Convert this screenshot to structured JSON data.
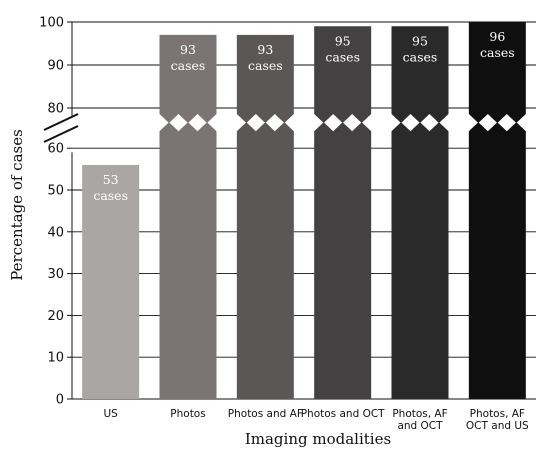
{
  "chart_data": {
    "type": "bar",
    "xlabel": "Imaging modalities",
    "ylabel": "Percentage of cases",
    "ylim": [
      0,
      100
    ],
    "axis_break": [
      60,
      80
    ],
    "yticks": [
      0,
      10,
      20,
      30,
      40,
      50,
      60,
      80,
      90,
      100
    ],
    "grid": true,
    "categories": [
      [
        "US"
      ],
      [
        "Photos"
      ],
      [
        "Photos and AF"
      ],
      [
        "Photos and OCT"
      ],
      [
        "Photos, AF",
        "and OCT"
      ],
      [
        "Photos, AF",
        "OCT and US"
      ]
    ],
    "values": [
      56,
      97,
      97,
      99,
      99,
      100
    ],
    "labels": [
      [
        "53",
        "cases"
      ],
      [
        "93",
        "cases"
      ],
      [
        "93",
        "cases"
      ],
      [
        "95",
        "cases"
      ],
      [
        "95",
        "cases"
      ],
      [
        "96",
        "cases"
      ]
    ],
    "colors": [
      "#aaa6a5",
      "#7a7574",
      "#5b5756",
      "#444142",
      "#2b2a2b",
      "#0f0f10"
    ]
  }
}
